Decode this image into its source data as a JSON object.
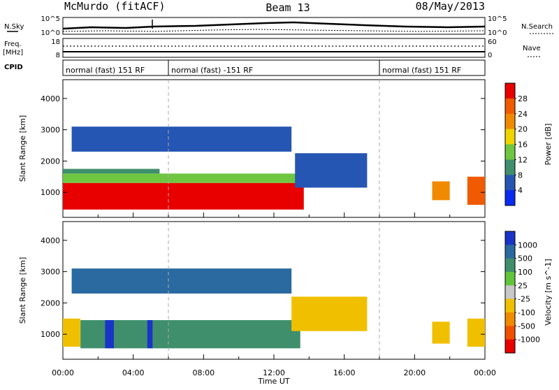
{
  "header": {
    "radar": "McMurdo (fitACF)",
    "beam": "Beam 13",
    "date": "08/May/2013"
  },
  "noise_panel": {
    "left_label": "N.Sky",
    "right_label": "N.Search",
    "left_ticks": [
      "10^5",
      "10^0"
    ],
    "right_ticks": [
      "10^5",
      "10^0"
    ]
  },
  "freq_panel": {
    "left_label_1": "Freq.",
    "left_label_2": "[MHz]",
    "right_label": "Nave",
    "left_ticks": [
      "18",
      "8"
    ],
    "right_ticks": [
      "60",
      "0"
    ]
  },
  "cpid": {
    "label": "CPID",
    "segments": [
      {
        "text": "normal (fast) 151 RF",
        "start_hour": 0,
        "end_hour": 6
      },
      {
        "text": "normal (fast) -151 RF",
        "start_hour": 6,
        "end_hour": 18
      },
      {
        "text": "normal (fast) 151 RF",
        "start_hour": 18,
        "end_hour": 24
      }
    ]
  },
  "x_axis": {
    "label": "Time UT",
    "ticks": [
      "00:00",
      "04:00",
      "08:00",
      "12:00",
      "16:00",
      "20:00",
      "00:00"
    ]
  },
  "chart_data": [
    {
      "type": "heatmap",
      "panel": "power",
      "ylabel": "Slant Range [km]",
      "y_ticks": [
        "1000",
        "2000",
        "3000",
        "4000"
      ],
      "ylim": [
        200,
        4600
      ],
      "xlim": [
        0,
        24
      ],
      "colorbar": {
        "title": "Power [dB]",
        "ticks": [
          "4",
          "8",
          "12",
          "16",
          "20",
          "24",
          "28"
        ],
        "range": [
          0,
          32
        ],
        "colors": [
          "#0a2cf0",
          "#2656b3",
          "#3f8f6c",
          "#6fc640",
          "#f0d400",
          "#f08a00",
          "#f05a00",
          "#e80000"
        ]
      },
      "regions": [
        {
          "x": [
            0,
            13.7
          ],
          "y": [
            450,
            1300
          ],
          "value": 28
        },
        {
          "x": [
            0,
            13.7
          ],
          "y": [
            1300,
            1600
          ],
          "value": 14
        },
        {
          "x": [
            0,
            5.5
          ],
          "y": [
            1600,
            1750
          ],
          "value": 8
        },
        {
          "x": [
            13.2,
            17.3
          ],
          "y": [
            1150,
            2250
          ],
          "value": 6
        },
        {
          "x": [
            21.0,
            22.0
          ],
          "y": [
            750,
            1350
          ],
          "value": 20
        },
        {
          "x": [
            23.0,
            24.0
          ],
          "y": [
            600,
            1500
          ],
          "value": 24
        },
        {
          "x": [
            0.5,
            13.0
          ],
          "y": [
            2300,
            3100
          ],
          "value": 6
        }
      ]
    },
    {
      "type": "heatmap",
      "panel": "velocity",
      "ylabel": "Slant Range [km]",
      "y_ticks": [
        "1000",
        "2000",
        "3000",
        "4000"
      ],
      "ylim": [
        200,
        4600
      ],
      "xlim": [
        0,
        24
      ],
      "colorbar": {
        "title": "Velocity [m s^-1]",
        "ticks": [
          "1000",
          "500",
          "100",
          "25",
          "-25",
          "-100",
          "-500",
          "-1000"
        ],
        "colors": [
          "#1a34c8",
          "#2a6aa0",
          "#3f8f6c",
          "#62c43a",
          "#c8c8c8",
          "#f0c000",
          "#f08a00",
          "#f05000",
          "#e80000"
        ]
      },
      "regions": [
        {
          "x": [
            0,
            1.0
          ],
          "y": [
            600,
            1500
          ],
          "value": -100
        },
        {
          "x": [
            1.0,
            13.5
          ],
          "y": [
            550,
            1450
          ],
          "value": 100
        },
        {
          "x": [
            2.4,
            2.9
          ],
          "y": [
            550,
            1450
          ],
          "value": 1000
        },
        {
          "x": [
            4.8,
            5.1
          ],
          "y": [
            550,
            1450
          ],
          "value": 1000
        },
        {
          "x": [
            13.0,
            17.3
          ],
          "y": [
            1100,
            2200
          ],
          "value": -100
        },
        {
          "x": [
            21.0,
            22.0
          ],
          "y": [
            700,
            1400
          ],
          "value": -100
        },
        {
          "x": [
            23.0,
            24.0
          ],
          "y": [
            600,
            1500
          ],
          "value": -100
        },
        {
          "x": [
            0.5,
            13.0
          ],
          "y": [
            2300,
            3100
          ],
          "value": 500
        }
      ]
    }
  ]
}
